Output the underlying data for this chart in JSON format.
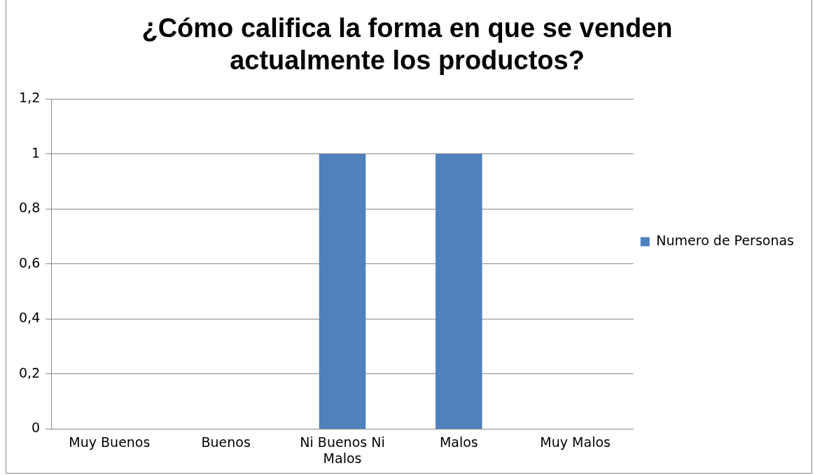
{
  "chart_data": {
    "type": "bar",
    "title": "¿Cómo califica la forma en que se venden actualmente los productos?",
    "categories": [
      "Muy Buenos",
      "Buenos",
      "Ni Buenos Ni Malos",
      "Malos",
      "Muy Malos"
    ],
    "series": [
      {
        "name": "Numero de Personas",
        "color": "#4f81bd",
        "values": [
          0,
          0,
          1,
          1,
          0
        ]
      }
    ],
    "ylim": [
      0,
      1.2
    ],
    "yticks": [
      0,
      {
        "value": 0.2,
        "label": "0,2"
      },
      {
        "value": 0.4,
        "label": "0,4"
      },
      {
        "value": 0.6,
        "label": "0,6"
      },
      {
        "value": 0.8,
        "label": "0,8"
      },
      1,
      {
        "value": 1.2,
        "label": "1,2"
      }
    ],
    "grid": "y",
    "legend": "right"
  }
}
